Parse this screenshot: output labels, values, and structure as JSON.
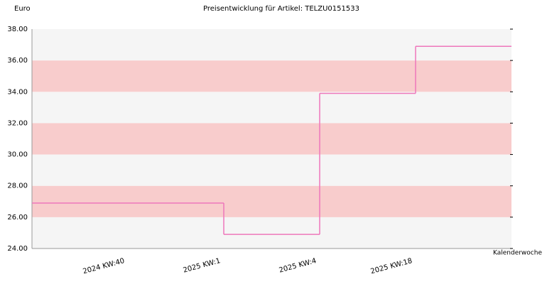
{
  "chart_data": {
    "type": "step",
    "title": "Preisentwicklung für Artikel: TELZU0151533",
    "y_label": "Euro",
    "x_label": "Kalenderwoche",
    "categories": [
      "2024 KW:40",
      "2025 KW:1",
      "2025 KW:4",
      "2025 KW:18"
    ],
    "values": [
      26.9,
      24.9,
      33.9,
      36.9
    ],
    "color": "#ee77bb",
    "band_colors": [
      "#f5f5f5",
      "#f8cccc"
    ],
    "ylim": [
      24,
      38
    ],
    "yticks": [
      {
        "value": 24,
        "label": "24.00"
      },
      {
        "value": 26,
        "label": "26.00"
      },
      {
        "value": 28,
        "label": "28.00"
      },
      {
        "value": 30,
        "label": "30.00"
      },
      {
        "value": 32,
        "label": "32.00"
      },
      {
        "value": 34,
        "label": "34.00"
      },
      {
        "value": 36,
        "label": "36.00"
      },
      {
        "value": 38,
        "label": "38.00"
      }
    ]
  }
}
